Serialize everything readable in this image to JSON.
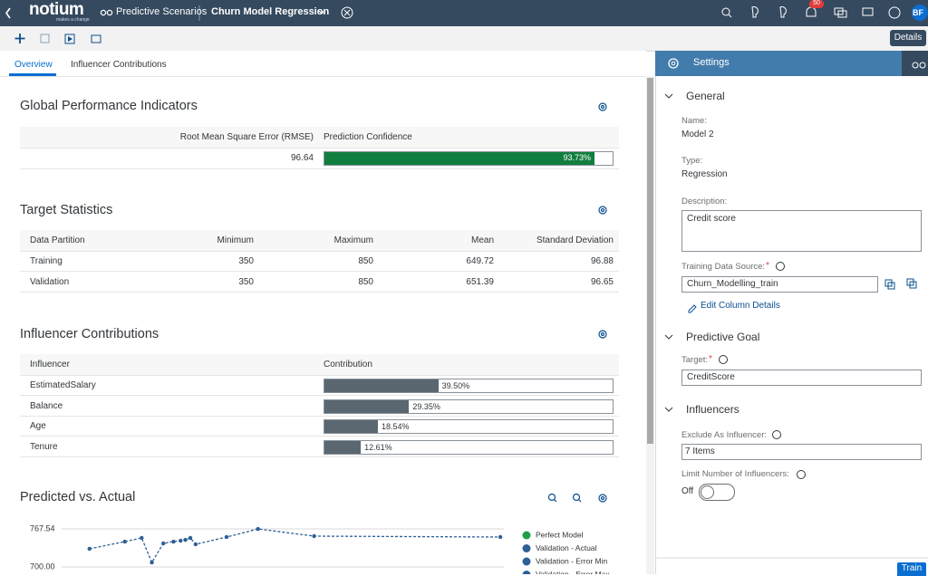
{
  "header": {
    "logo": "notium",
    "logo_sub": "makes a change",
    "app": "Predictive Scenarios",
    "model": "Churn Model Regression",
    "notification_count": "50",
    "avatar": "BF"
  },
  "toolbar": {
    "details": "Details"
  },
  "tabs": [
    "Overview",
    "Influencer Contributions"
  ],
  "gpi": {
    "title": "Global Performance Indicators",
    "columns": [
      "Root Mean Square Error (RMSE)",
      "Prediction Confidence"
    ],
    "rmse": "96.64",
    "confidence": {
      "value": 93.73,
      "label": "93.73%"
    }
  },
  "target_stats": {
    "title": "Target Statistics",
    "columns": [
      "Data Partition",
      "Minimum",
      "Maximum",
      "Mean",
      "Standard Deviation"
    ],
    "rows": [
      [
        "Training",
        "350",
        "850",
        "649.72",
        "96.88"
      ],
      [
        "Validation",
        "350",
        "850",
        "651.39",
        "96.65"
      ]
    ]
  },
  "influencers": {
    "title": "Influencer Contributions",
    "columns": [
      "Influencer",
      "Contribution"
    ],
    "rows": [
      {
        "name": "EstimatedSalary",
        "value": 39.5,
        "label": "39.50%"
      },
      {
        "name": "Balance",
        "value": 29.35,
        "label": "29.35%"
      },
      {
        "name": "Age",
        "value": 18.54,
        "label": "18.54%"
      },
      {
        "name": "Tenure",
        "value": 12.61,
        "label": "12.61%"
      }
    ]
  },
  "chart_data": {
    "type": "line",
    "title": "Predicted vs. Actual",
    "x": [
      6.3,
      14.3,
      18.1,
      20.4,
      23.0,
      25.3,
      26.9,
      28.0,
      29.1,
      30.3,
      37.3,
      44.4,
      57.1,
      99.2
    ],
    "xlim": [
      0,
      100
    ],
    "ylim": [
      700,
      767.54
    ],
    "yticks": [
      {
        "value": 700,
        "label": "700.00"
      },
      767.54
    ],
    "grid": true,
    "series": [
      {
        "name": "Perfect Model",
        "color": "#1e9e4a",
        "values": [
          null,
          null,
          null,
          null,
          null,
          null,
          null,
          null,
          null,
          null,
          null,
          null,
          null,
          null
        ]
      },
      {
        "name": "Validation - Actual",
        "color": "#2f5f98",
        "values": [
          732.2,
          745.0,
          751.5,
          708.0,
          741.8,
          745.0,
          746.6,
          748.2,
          751.5,
          740.2,
          753.1,
          767.5,
          754.7,
          753.1
        ]
      },
      {
        "name": "Validation - Error Min",
        "color": "#2f5f98",
        "values": [
          null,
          null,
          null,
          null,
          null,
          null,
          null,
          null,
          null,
          null,
          null,
          null,
          null,
          null
        ]
      },
      {
        "name": "Validation - Error Max",
        "color": "#2f5f98",
        "values": [
          null,
          null,
          null,
          null,
          null,
          null,
          null,
          null,
          null,
          null,
          null,
          null,
          null,
          null
        ]
      }
    ]
  },
  "settings": {
    "title": "Settings",
    "required_mark": "*",
    "general": {
      "title": "General",
      "name_label": "Name:",
      "name": "Model 2",
      "type_label": "Type:",
      "type": "Regression",
      "description_label": "Description:",
      "description": "Credit score",
      "source_label": "Training Data Source:",
      "source": "Churn_Modelling_train",
      "edit_link": "Edit Column Details"
    },
    "goal": {
      "title": "Predictive Goal",
      "target_label": "Target:",
      "target": "CreditScore"
    },
    "influencers": {
      "title": "Influencers",
      "exclude_label": "Exclude As Influencer:",
      "exclude": "7 Items",
      "limit_label": "Limit Number of Influencers:",
      "limit": "Off"
    },
    "train": "Train"
  }
}
